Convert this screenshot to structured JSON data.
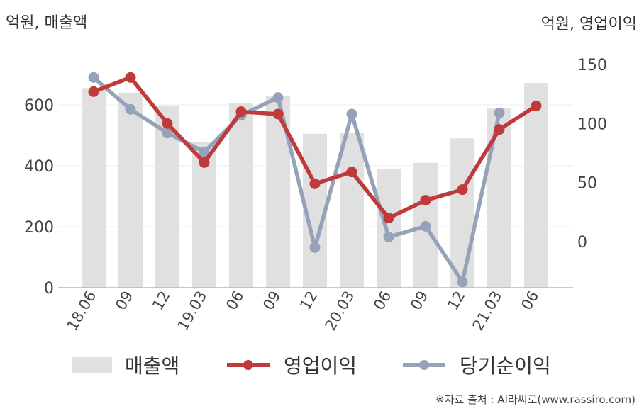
{
  "left_unit_label": "억원, 매출액",
  "right_unit_label": "억원, 영업이익",
  "source_text": "※자료 출처 : AI라씨로(www.rassiro.com)",
  "colors": {
    "sales": "#e0e0e0",
    "op": "#c0393b",
    "net": "#96a2b9"
  },
  "chart_data": {
    "type": "bar+line",
    "categories": [
      "18.06",
      "09",
      "12",
      "19.03",
      "06",
      "09",
      "12",
      "20.03",
      "06",
      "09",
      "12",
      "21.03",
      "06"
    ],
    "left_axis": {
      "ticks": [
        0,
        200,
        400,
        600
      ],
      "ylim": [
        0,
        700
      ]
    },
    "right_axis": {
      "ticks": [
        0,
        50,
        100,
        150
      ],
      "ylim": [
        -40,
        155
      ]
    },
    "grid": true,
    "legend_position": "bottom",
    "series": [
      {
        "name": "매출액",
        "type": "bar",
        "axis": "left",
        "values": [
          655,
          640,
          598,
          478,
          607,
          628,
          505,
          508,
          390,
          410,
          490,
          588,
          672
        ]
      },
      {
        "name": "영업이익",
        "type": "line",
        "axis": "right",
        "values": [
          127,
          139,
          100,
          67,
          110,
          108,
          49,
          59,
          20,
          35,
          44,
          95,
          115
        ]
      },
      {
        "name": "당기순이익",
        "type": "line",
        "axis": "right",
        "values": [
          139,
          112,
          92,
          76,
          107,
          122,
          -5,
          108,
          4,
          13,
          -34,
          109,
          null
        ]
      }
    ]
  }
}
